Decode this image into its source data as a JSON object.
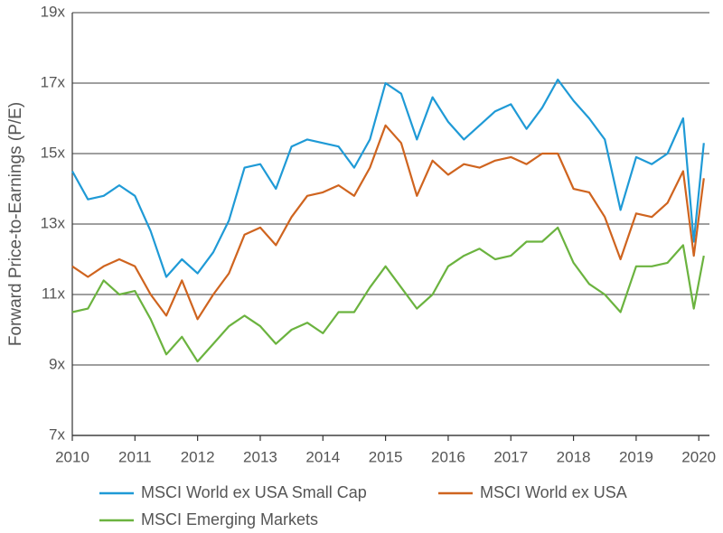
{
  "chart_data": {
    "type": "line",
    "y_label": "Forward Price-to-Earnings (P/E)",
    "x": [
      2010,
      2010.25,
      2010.5,
      2010.75,
      2011,
      2011.25,
      2011.5,
      2011.75,
      2012,
      2012.25,
      2012.5,
      2012.75,
      2013,
      2013.25,
      2013.5,
      2013.75,
      2014,
      2014.25,
      2014.5,
      2014.75,
      2015,
      2015.25,
      2015.5,
      2015.75,
      2016,
      2016.25,
      2016.5,
      2016.75,
      2017,
      2017.25,
      2017.5,
      2017.75,
      2018,
      2018.25,
      2018.5,
      2018.75,
      2019,
      2019.25,
      2019.5,
      2019.75,
      2019.92,
      2020.08
    ],
    "series": [
      {
        "name": "MSCI World ex USA Small Cap",
        "color": "#1f9ad6",
        "values": [
          14.5,
          13.7,
          13.8,
          14.1,
          13.8,
          12.8,
          11.5,
          12.0,
          11.6,
          12.2,
          13.1,
          14.6,
          14.7,
          14.0,
          15.2,
          15.4,
          15.3,
          15.2,
          14.6,
          15.4,
          17.0,
          16.7,
          15.4,
          16.6,
          15.9,
          15.4,
          15.8,
          16.2,
          16.4,
          15.7,
          16.3,
          17.1,
          16.5,
          16.0,
          15.4,
          13.4,
          14.9,
          14.7,
          15.0,
          16.0,
          12.5,
          15.3
        ]
      },
      {
        "name": "MSCI World ex USA",
        "color": "#cf641f",
        "values": [
          11.8,
          11.5,
          11.8,
          12.0,
          11.8,
          11.0,
          10.4,
          11.4,
          10.3,
          11.0,
          11.6,
          12.7,
          12.9,
          12.4,
          13.2,
          13.8,
          13.9,
          14.1,
          13.8,
          14.6,
          15.8,
          15.3,
          13.8,
          14.8,
          14.4,
          14.7,
          14.6,
          14.8,
          14.9,
          14.7,
          15.0,
          15.0,
          14.0,
          13.9,
          13.2,
          12.0,
          13.3,
          13.2,
          13.6,
          14.5,
          12.1,
          14.3
        ]
      },
      {
        "name": "MSCI Emerging Markets",
        "color": "#6bb33f",
        "values": [
          10.5,
          10.6,
          11.4,
          11.0,
          11.1,
          10.3,
          9.3,
          9.8,
          9.1,
          9.6,
          10.1,
          10.4,
          10.1,
          9.6,
          10.0,
          10.2,
          9.9,
          10.5,
          10.5,
          11.2,
          11.8,
          11.2,
          10.6,
          11.0,
          11.8,
          12.1,
          12.3,
          12.0,
          12.1,
          12.5,
          12.5,
          12.9,
          11.9,
          11.3,
          11.0,
          10.5,
          11.8,
          11.8,
          11.9,
          12.4,
          10.6,
          12.1
        ]
      }
    ],
    "xlim": [
      2010,
      2020.17
    ],
    "xticks": [
      2010,
      2011,
      2012,
      2013,
      2014,
      2015,
      2016,
      2017,
      2018,
      2019,
      2020
    ],
    "ylim": [
      7,
      19
    ],
    "yticks": [
      {
        "value": 7,
        "label": "7x"
      },
      {
        "value": 9,
        "label": "9x"
      },
      {
        "value": 11,
        "label": "11x"
      },
      {
        "value": 13,
        "label": "13x"
      },
      {
        "value": 15,
        "label": "15x"
      },
      {
        "value": 17,
        "label": "17x"
      },
      {
        "value": 19,
        "label": "19x"
      }
    ],
    "grid": true,
    "legend": "bottom"
  }
}
